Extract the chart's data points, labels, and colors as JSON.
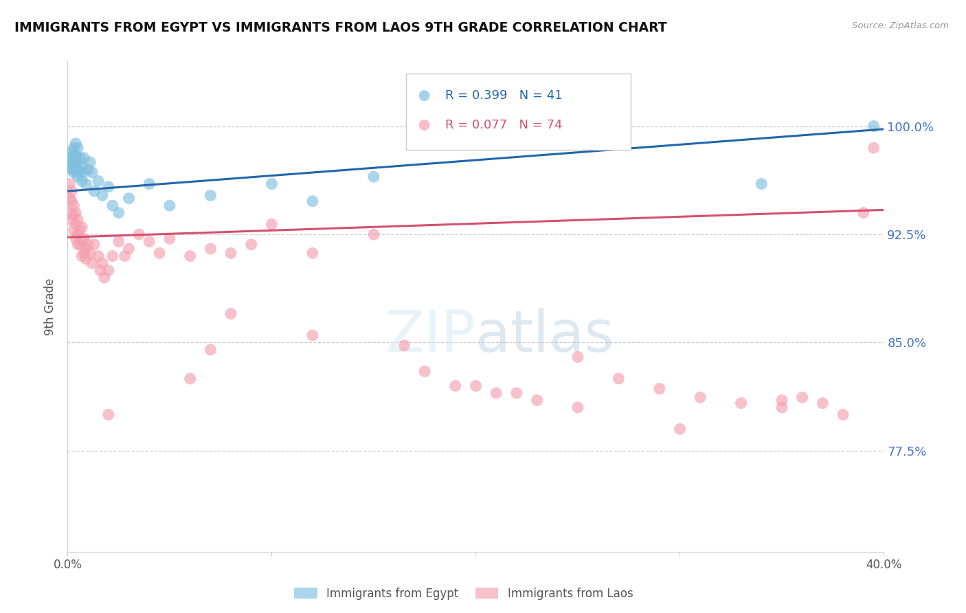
{
  "title": "IMMIGRANTS FROM EGYPT VS IMMIGRANTS FROM LAOS 9TH GRADE CORRELATION CHART",
  "source": "Source: ZipAtlas.com",
  "ylabel": "9th Grade",
  "yticks": [
    0.775,
    0.85,
    0.925,
    1.0
  ],
  "ytick_labels": [
    "77.5%",
    "85.0%",
    "92.5%",
    "100.0%"
  ],
  "xmin": 0.0,
  "xmax": 0.4,
  "ymin": 0.705,
  "ymax": 1.045,
  "legend_r1": "R = 0.399",
  "legend_n1": "N = 41",
  "legend_r2": "R = 0.077",
  "legend_n2": "N = 74",
  "egypt_color": "#7fbfdf",
  "laos_color": "#f4a0b0",
  "egypt_line_color": "#2166ac",
  "laos_line_color": "#d45070",
  "egypt_line_x0": 0.0,
  "egypt_line_y0": 0.955,
  "egypt_line_x1": 0.4,
  "egypt_line_y1": 0.998,
  "laos_line_x0": 0.0,
  "laos_line_y0": 0.923,
  "laos_line_x1": 0.4,
  "laos_line_y1": 0.942,
  "egypt_x": [
    0.001,
    0.001,
    0.002,
    0.002,
    0.002,
    0.003,
    0.003,
    0.003,
    0.003,
    0.004,
    0.004,
    0.004,
    0.004,
    0.005,
    0.005,
    0.005,
    0.006,
    0.006,
    0.007,
    0.007,
    0.008,
    0.008,
    0.009,
    0.01,
    0.011,
    0.012,
    0.013,
    0.015,
    0.017,
    0.02,
    0.022,
    0.025,
    0.03,
    0.04,
    0.05,
    0.07,
    0.1,
    0.12,
    0.15,
    0.34,
    0.395
  ],
  "egypt_y": [
    0.972,
    0.978,
    0.97,
    0.975,
    0.982,
    0.968,
    0.975,
    0.98,
    0.985,
    0.97,
    0.975,
    0.98,
    0.988,
    0.965,
    0.975,
    0.985,
    0.968,
    0.978,
    0.972,
    0.962,
    0.978,
    0.968,
    0.96,
    0.97,
    0.975,
    0.968,
    0.955,
    0.962,
    0.952,
    0.958,
    0.945,
    0.94,
    0.95,
    0.96,
    0.945,
    0.952,
    0.96,
    0.948,
    0.965,
    0.96,
    1.0
  ],
  "laos_x": [
    0.001,
    0.001,
    0.001,
    0.002,
    0.002,
    0.002,
    0.003,
    0.003,
    0.003,
    0.004,
    0.004,
    0.004,
    0.005,
    0.005,
    0.005,
    0.006,
    0.006,
    0.007,
    0.007,
    0.007,
    0.008,
    0.008,
    0.009,
    0.009,
    0.01,
    0.011,
    0.012,
    0.013,
    0.015,
    0.016,
    0.017,
    0.018,
    0.02,
    0.022,
    0.025,
    0.028,
    0.03,
    0.035,
    0.04,
    0.045,
    0.05,
    0.06,
    0.07,
    0.08,
    0.09,
    0.1,
    0.12,
    0.15,
    0.165,
    0.175,
    0.19,
    0.21,
    0.23,
    0.25,
    0.27,
    0.29,
    0.31,
    0.33,
    0.35,
    0.36,
    0.37,
    0.38,
    0.395,
    0.3,
    0.35,
    0.08,
    0.22,
    0.12,
    0.25,
    0.07,
    0.02,
    0.06,
    0.2,
    0.39
  ],
  "laos_y": [
    0.96,
    0.95,
    0.94,
    0.955,
    0.948,
    0.935,
    0.945,
    0.938,
    0.928,
    0.94,
    0.932,
    0.922,
    0.935,
    0.925,
    0.918,
    0.928,
    0.918,
    0.93,
    0.92,
    0.91,
    0.922,
    0.912,
    0.915,
    0.908,
    0.918,
    0.912,
    0.905,
    0.918,
    0.91,
    0.9,
    0.905,
    0.895,
    0.9,
    0.91,
    0.92,
    0.91,
    0.915,
    0.925,
    0.92,
    0.912,
    0.922,
    0.91,
    0.915,
    0.912,
    0.918,
    0.932,
    0.912,
    0.925,
    0.848,
    0.83,
    0.82,
    0.815,
    0.81,
    0.84,
    0.825,
    0.818,
    0.812,
    0.808,
    0.805,
    0.812,
    0.808,
    0.8,
    0.985,
    0.79,
    0.81,
    0.87,
    0.815,
    0.855,
    0.805,
    0.845,
    0.8,
    0.825,
    0.82,
    0.94
  ]
}
